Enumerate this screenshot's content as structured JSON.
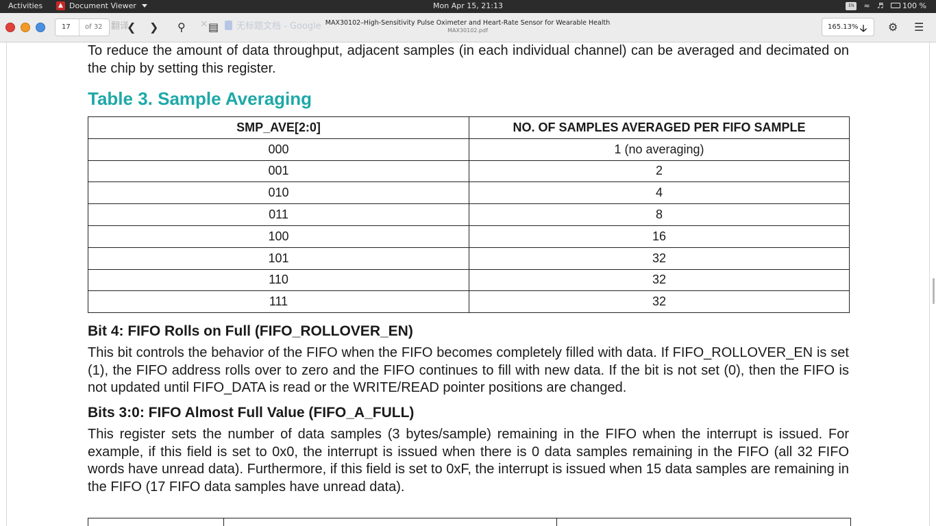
{
  "topbar": {
    "activities": "Activities",
    "app_name": "Document Viewer",
    "clock": "Mon Apr 15, 21:13",
    "battery": "100 %",
    "icons": [
      "pdf-app-icon",
      "keyboard-icon",
      "wifi-icon",
      "volume-icon",
      "battery-icon"
    ]
  },
  "header": {
    "page_current": "17",
    "page_total": "of 32",
    "ghost_text_1": "翻译",
    "ghost_close": "×",
    "ghost_text_2": "无标题文档 - Google",
    "title": "MAX30102–High-Sensitivity Pulse Oximeter and Heart-Rate Sensor for Wearable Health",
    "filename": "MAX30102.pdf",
    "zoom": "165.13%",
    "window_controls": [
      "close",
      "minimize",
      "maximize"
    ],
    "icons": [
      "chevron-left-icon",
      "chevron-right-icon",
      "search-icon",
      "annotations-icon",
      "download-icon",
      "gear-icon",
      "hamburger-menu-icon"
    ]
  },
  "document": {
    "intro": "To reduce the amount of data throughput, adjacent samples (in each individual channel) can be averaged and decimated on the chip by setting this register.",
    "table_title": "Table 3. Sample Averaging",
    "table": {
      "headers": [
        "SMP_AVE[2:0]",
        "NO. OF SAMPLES AVERAGED PER FIFO SAMPLE"
      ],
      "rows": [
        [
          "000",
          "1 (no averaging)"
        ],
        [
          "001",
          "2"
        ],
        [
          "010",
          "4"
        ],
        [
          "011",
          "8"
        ],
        [
          "100",
          "16"
        ],
        [
          "101",
          "32"
        ],
        [
          "110",
          "32"
        ],
        [
          "111",
          "32"
        ]
      ]
    },
    "bit4_heading": "Bit 4: FIFO Rolls on Full (FIFO_ROLLOVER_EN)",
    "bit4_text": "This bit controls the behavior of the FIFO when the FIFO becomes completely filled with data. If FIFO_ROLLOVER_EN is set (1), the FIFO address rolls over to zero and the FIFO continues to fill with new data. If the bit is not set (0), then the FIFO is not updated until FIFO_DATA is read or the WRITE/READ pointer positions are changed.",
    "bits30_heading": "Bits 3:0: FIFO Almost Full Value (FIFO_A_FULL)",
    "bits30_text": "This register sets the number of data samples (3 bytes/sample) remaining in the FIFO when the interrupt is issued. For example, if this field is set to 0x0, the interrupt is issued when there is 0 data samples remaining in the FIFO (all 32 FIFO words have unread data). Furthermore, if this field is set to 0xF, the interrupt is issued when 15 data samples are remaining in the FIFO (17 FIFO data samples have unread data)."
  },
  "colors": {
    "table_title": "#1fa8a8",
    "topbar_bg": "#2b2b2b",
    "header_bg": "#ececec",
    "close_btn": "#e0413a",
    "min_btn": "#f29a28",
    "max_btn": "#4a90e2"
  }
}
